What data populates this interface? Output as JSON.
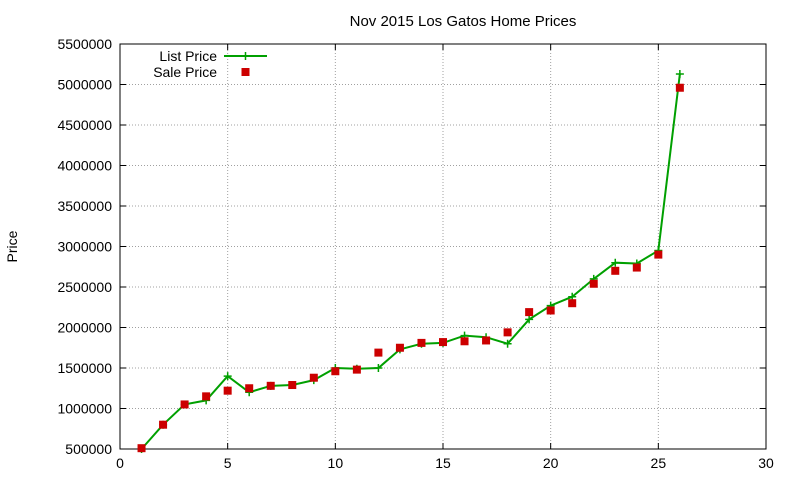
{
  "chart_data": {
    "type": "line",
    "title": "Nov 2015 Los Gatos Home Prices",
    "xlabel": "",
    "ylabel": "Price",
    "xlim": [
      0,
      30
    ],
    "ylim": [
      500000,
      5500000
    ],
    "x_ticks": [
      0,
      5,
      10,
      15,
      20,
      25,
      30
    ],
    "y_ticks": [
      500000,
      1000000,
      1500000,
      2000000,
      2500000,
      3000000,
      3500000,
      4000000,
      4500000,
      5000000,
      5500000
    ],
    "grid": true,
    "legend_position": "top-left",
    "series": [
      {
        "name": "List Price",
        "style": "line+cross",
        "color": "#00a000",
        "x": [
          1,
          2,
          3,
          4,
          5,
          6,
          7,
          8,
          9,
          10,
          11,
          12,
          13,
          14,
          15,
          16,
          17,
          18,
          19,
          20,
          21,
          22,
          23,
          24,
          25,
          26
        ],
        "y": [
          500000,
          800000,
          1050000,
          1100000,
          1400000,
          1200000,
          1280000,
          1290000,
          1350000,
          1500000,
          1490000,
          1500000,
          1730000,
          1800000,
          1810000,
          1900000,
          1880000,
          1800000,
          2100000,
          2270000,
          2380000,
          2600000,
          2800000,
          2790000,
          2950000,
          5130000
        ]
      },
      {
        "name": "Sale Price",
        "style": "points",
        "color": "#cc0000",
        "x": [
          1,
          2,
          3,
          4,
          5,
          6,
          7,
          8,
          9,
          10,
          11,
          12,
          13,
          14,
          15,
          16,
          17,
          18,
          19,
          20,
          21,
          22,
          23,
          24,
          25,
          26
        ],
        "y": [
          510000,
          800000,
          1050000,
          1150000,
          1220000,
          1250000,
          1280000,
          1290000,
          1380000,
          1460000,
          1480000,
          1690000,
          1750000,
          1810000,
          1820000,
          1830000,
          1840000,
          1940000,
          2190000,
          2210000,
          2300000,
          2540000,
          2700000,
          2740000,
          2900000,
          4960000
        ]
      }
    ]
  }
}
